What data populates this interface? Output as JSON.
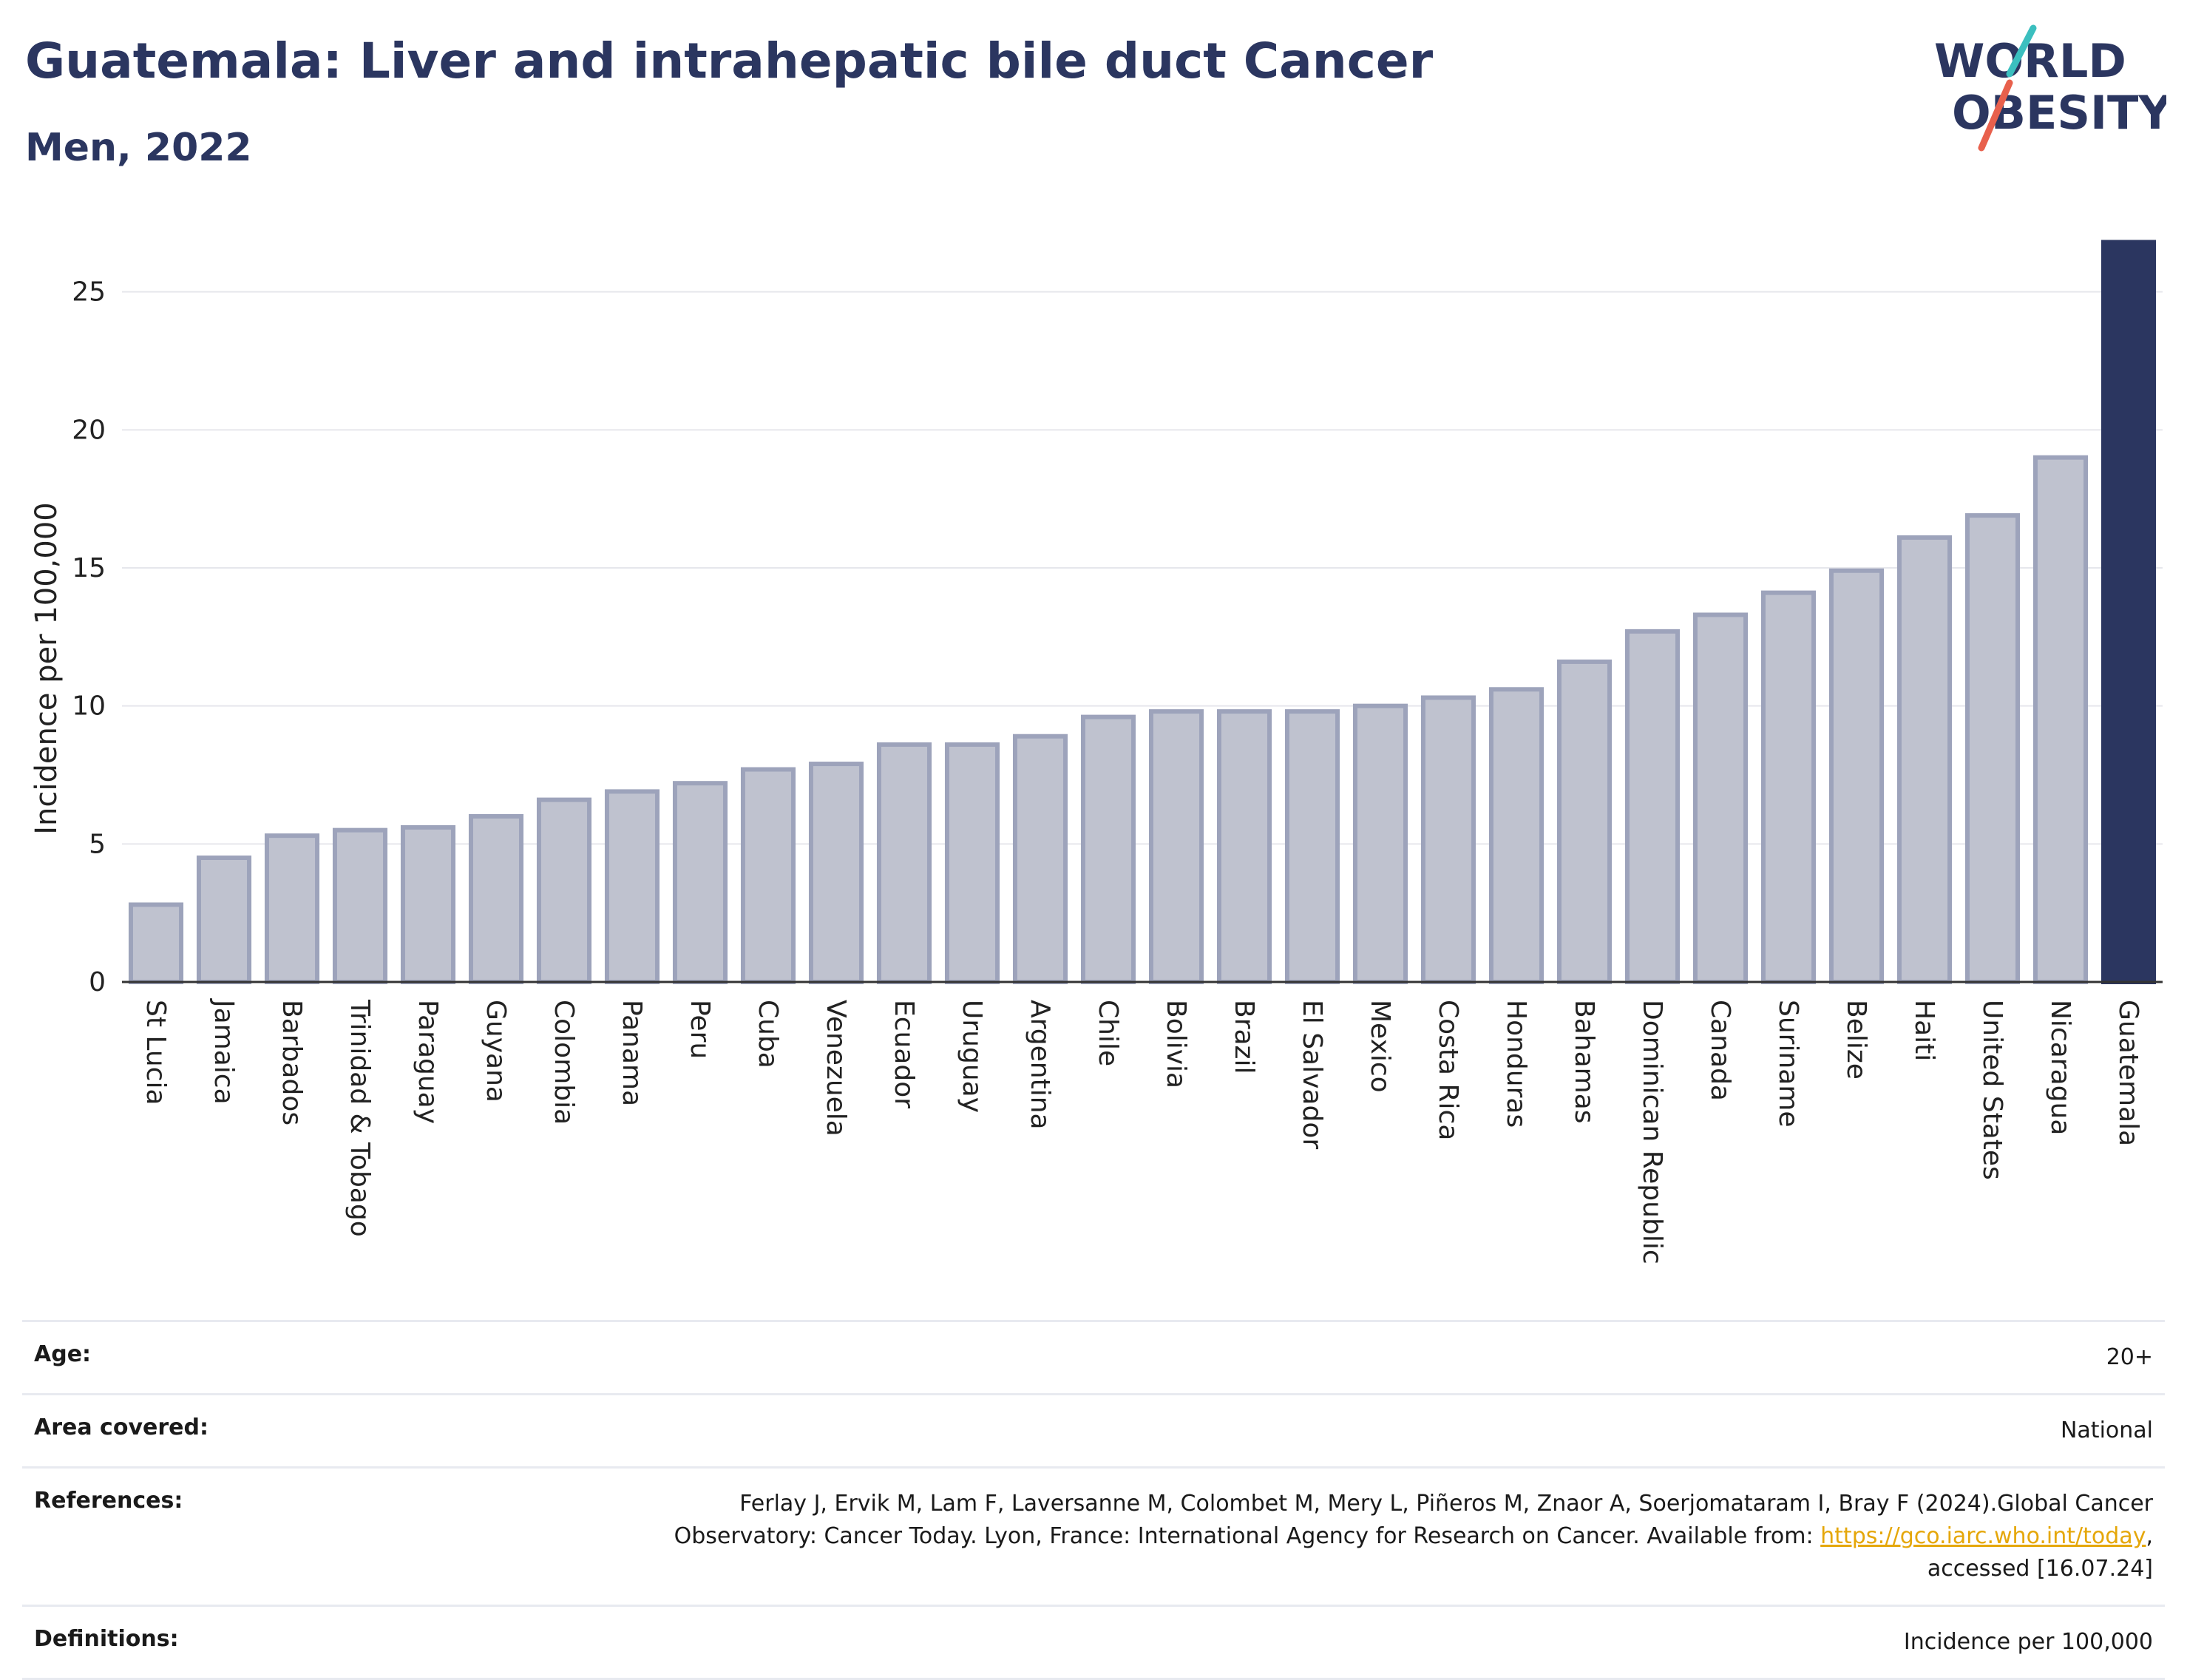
{
  "header": {
    "title": "Guatemala: Liver and intrahepatic bile duct Cancer",
    "subtitle": "Men, 2022"
  },
  "logo": {
    "line1": "WORLD",
    "line2": "OBESITY",
    "colors": {
      "text": "#2b3660",
      "slash_teal": "#3bbfbf",
      "slash_red": "#e8604c"
    }
  },
  "chart_data": {
    "type": "bar",
    "ylabel": "Incidence per 100,000",
    "xlabel": "",
    "ylim": [
      0,
      27
    ],
    "yticks": [
      0,
      5,
      10,
      15,
      20,
      25
    ],
    "grid": true,
    "legend": "none",
    "colors": {
      "bar": "#bfc2cf",
      "bar_edge": "#9da3bb",
      "highlight": "#2b3660"
    },
    "highlight": "Guatemala",
    "categories": [
      "St Lucia",
      "Jamaica",
      "Barbados",
      "Trinidad & Tobago",
      "Paraguay",
      "Guyana",
      "Colombia",
      "Panama",
      "Peru",
      "Cuba",
      "Venezuela",
      "Ecuador",
      "Uruguay",
      "Argentina",
      "Chile",
      "Bolivia",
      "Brazil",
      "El Salvador",
      "Mexico",
      "Costa Rica",
      "Honduras",
      "Bahamas",
      "Dominican Republic",
      "Canada",
      "Suriname",
      "Belize",
      "Haiti",
      "United States",
      "Nicaragua",
      "Guatemala"
    ],
    "values": [
      2.8,
      4.5,
      5.3,
      5.5,
      5.6,
      6.0,
      6.6,
      6.9,
      7.2,
      7.7,
      7.9,
      8.6,
      8.6,
      8.9,
      9.6,
      9.8,
      9.8,
      9.8,
      10.0,
      10.3,
      10.6,
      11.6,
      12.7,
      13.3,
      14.1,
      14.9,
      16.1,
      16.9,
      19.0,
      26.8
    ]
  },
  "meta": {
    "age": {
      "label": "Age:",
      "value": "20+"
    },
    "area": {
      "label": "Area covered:",
      "value": "National"
    },
    "references": {
      "label": "References:",
      "line1": "Ferlay J, Ervik M, Lam F, Laversanne M, Colombet M, Mery L, Piñeros M, Znaor A, Soerjomataram I, Bray F (2024).Global Cancer",
      "line2_pre": "Observatory: Cancer Today. Lyon, France: International Agency for Research on Cancer. Available from: ",
      "link": "https://gco.iarc.who.int/today",
      "line2_post": ",",
      "line3": "accessed [16.07.24]"
    },
    "definitions": {
      "label": "Definitions:",
      "value": "Incidence per 100,000"
    }
  }
}
